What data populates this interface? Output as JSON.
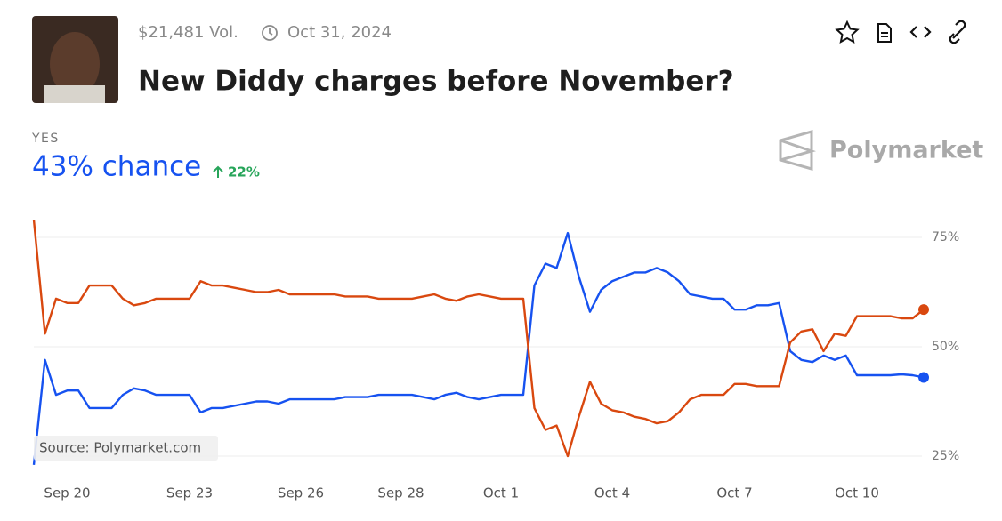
{
  "header": {
    "volume": "$21,481 Vol.",
    "date": "Oct 31, 2024",
    "title": "New Diddy charges before November?"
  },
  "outcome": {
    "label": "YES",
    "chance": "43% chance",
    "change": "22%"
  },
  "brand": "Polymarket",
  "source": "Source: Polymarket.com",
  "chart_data": {
    "type": "line",
    "categories": [
      null,
      null,
      null,
      "Sep 20",
      null,
      null,
      null,
      null,
      null,
      null,
      null,
      null,
      null,
      null,
      "Sep 23",
      null,
      null,
      null,
      null,
      null,
      null,
      null,
      null,
      null,
      "Sep 26",
      null,
      null,
      null,
      null,
      null,
      null,
      null,
      null,
      "Sep 28",
      null,
      null,
      null,
      null,
      null,
      null,
      null,
      null,
      "Oct 1",
      null,
      null,
      null,
      null,
      null,
      null,
      null,
      null,
      null,
      "Oct 4",
      null,
      null,
      null,
      null,
      null,
      null,
      null,
      null,
      null,
      null,
      "Oct 7",
      null,
      null,
      null,
      null,
      null,
      null,
      null,
      null,
      null,
      null,
      "Oct 10",
      null,
      null,
      null,
      null,
      null,
      null
    ],
    "series": [
      {
        "color": "#1652f0",
        "values": [
          23,
          47,
          39,
          40,
          40,
          36,
          36,
          36,
          39,
          40.5,
          40,
          39,
          39,
          39,
          39,
          35,
          36,
          36,
          36.5,
          37,
          37.5,
          37.5,
          37,
          38,
          38,
          38,
          38,
          38,
          38.5,
          38.5,
          38.5,
          39,
          39,
          39,
          39,
          38.5,
          38,
          39,
          39.5,
          38.5,
          38,
          38.5,
          39,
          39,
          39,
          64,
          69,
          68,
          76,
          66,
          58,
          63,
          65,
          66,
          67,
          67,
          68,
          67,
          65,
          62,
          61.5,
          61,
          61,
          58.5,
          58.5,
          59.5,
          59.5,
          60,
          49,
          47,
          46.5,
          48,
          47,
          48,
          43.5,
          43.5,
          43.5,
          43.5,
          43.7,
          43.5,
          43
        ]
      },
      {
        "color": "#d9480f",
        "values": [
          79,
          53,
          61,
          60,
          60,
          64,
          64,
          64,
          61,
          59.5,
          60,
          61,
          61,
          61,
          61,
          65,
          64,
          64,
          63.5,
          63,
          62.5,
          62.5,
          63,
          62,
          62,
          62,
          62,
          62,
          61.5,
          61.5,
          61.5,
          61,
          61,
          61,
          61,
          61.5,
          62,
          61,
          60.5,
          61.5,
          62,
          61.5,
          61,
          61,
          61,
          36,
          31,
          32,
          25,
          34,
          42,
          37,
          35.5,
          35,
          34,
          33.5,
          32.5,
          33,
          35,
          38,
          39,
          39,
          39,
          41.5,
          41.5,
          41,
          41,
          41,
          51,
          53.5,
          54,
          49,
          53,
          52.5,
          57,
          57,
          57,
          57,
          56.5,
          56.5,
          58.5
        ]
      }
    ],
    "ylim": [
      21,
      80
    ],
    "yticks": [
      {
        "value": 25,
        "label": "25%"
      },
      {
        "value": 50,
        "label": "50%"
      },
      {
        "value": 75,
        "label": "75%"
      }
    ],
    "grid": true
  }
}
